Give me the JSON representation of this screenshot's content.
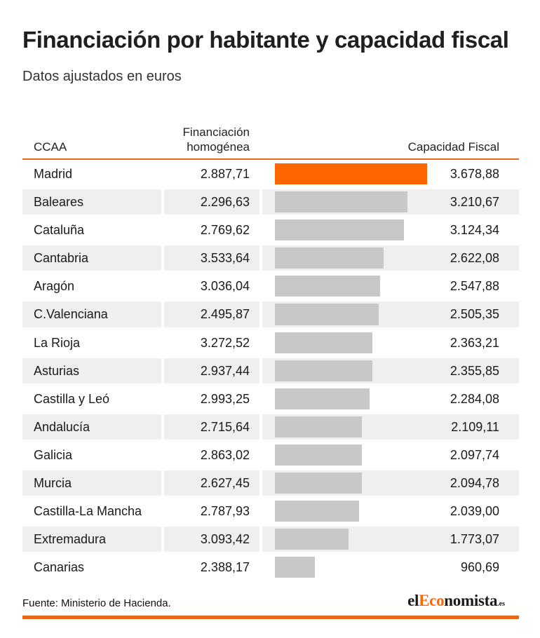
{
  "title": "Financiación por habitante y capacidad fiscal",
  "subtitle": "Datos ajustados en euros",
  "headers": {
    "ccaa": "CCAA",
    "financiacion": "Financiación homogénea",
    "capacidad": "Capacidad Fiscal"
  },
  "source": "Fuente: Ministerio de Hacienda.",
  "logo": {
    "part1": "el",
    "part2": "Eco",
    "part3": "nomista",
    "tld": ".es"
  },
  "colors": {
    "accent": "#ff6600",
    "bar": "#c8c8c8",
    "rule": "#e8681a",
    "shade": "#efefef"
  },
  "chart_data": {
    "type": "table",
    "columns": [
      "CCAA",
      "Financiación homogénea",
      "Capacidad Fiscal"
    ],
    "bar_column": "Capacidad Fiscal",
    "highlight": "Madrid",
    "rows": [
      {
        "ccaa": "Madrid",
        "fin": "2.887,71",
        "cap": "3.678,88",
        "cap_value": 3678.88
      },
      {
        "ccaa": "Baleares",
        "fin": "2.296,63",
        "cap": "3.210,67",
        "cap_value": 3210.67
      },
      {
        "ccaa": "Cataluña",
        "fin": "2.769,62",
        "cap": "3.124,34",
        "cap_value": 3124.34
      },
      {
        "ccaa": "Cantabria",
        "fin": "3.533,64",
        "cap": "2.622,08",
        "cap_value": 2622.08
      },
      {
        "ccaa": "Aragón",
        "fin": "3.036,04",
        "cap": "2.547,88",
        "cap_value": 2547.88
      },
      {
        "ccaa": "C.Valenciana",
        "fin": "2.495,87",
        "cap": "2.505,35",
        "cap_value": 2505.35
      },
      {
        "ccaa": "La Rioja",
        "fin": "3.272,52",
        "cap": "2.363,21",
        "cap_value": 2363.21
      },
      {
        "ccaa": "Asturias",
        "fin": "2.937,44",
        "cap": "2.355,85",
        "cap_value": 2355.85
      },
      {
        "ccaa": "Castilla y Leó",
        "fin": "2.993,25",
        "cap": "2.284,08",
        "cap_value": 2284.08
      },
      {
        "ccaa": "Andalucía",
        "fin": "2.715,64",
        "cap": "2.109,11",
        "cap_value": 2109.11
      },
      {
        "ccaa": "Galicia",
        "fin": "2.863,02",
        "cap": "2.097,74",
        "cap_value": 2097.74
      },
      {
        "ccaa": "Murcia",
        "fin": "2.627,45",
        "cap": "2.094,78",
        "cap_value": 2094.78
      },
      {
        "ccaa": "Castilla-La Mancha",
        "fin": "2.787,93",
        "cap": "2.039,00",
        "cap_value": 2039.0
      },
      {
        "ccaa": "Extremadura",
        "fin": "3.093,42",
        "cap": "1.773,07",
        "cap_value": 1773.07
      },
      {
        "ccaa": "Canarias",
        "fin": "2.388,17",
        "cap": "960,69",
        "cap_value": 960.69
      }
    ]
  }
}
